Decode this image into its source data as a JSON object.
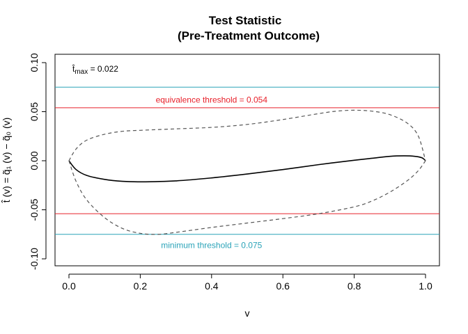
{
  "chart_data": {
    "type": "line",
    "title": "Test Statistic",
    "subtitle": "(Pre-Treatment Outcome)",
    "xlabel": "v",
    "ylabel": "t̂ (v) = q̃₁ (v) − q̃₀ (v)",
    "xlim": [
      0.0,
      1.0
    ],
    "ylim": [
      -0.1,
      0.1
    ],
    "x_ticks": [
      "0.0",
      "0.2",
      "0.4",
      "0.6",
      "0.8",
      "1.0"
    ],
    "y_ticks": [
      "-0.10",
      "-0.05",
      "0.00",
      "0.05",
      "0.10"
    ],
    "grid": false,
    "tmax_annotation": {
      "label": "t̂",
      "subscript": "max",
      "value_text": " = 0.022"
    },
    "series": [
      {
        "style": "solid",
        "color": "#000000",
        "x": [
          0.0,
          0.02,
          0.05,
          0.1,
          0.15,
          0.2,
          0.3,
          0.4,
          0.5,
          0.6,
          0.7,
          0.8,
          0.85,
          0.9,
          0.94,
          0.97,
          0.99,
          1.0
        ],
        "y": [
          0.0,
          -0.009,
          -0.015,
          -0.019,
          -0.021,
          -0.0215,
          -0.0205,
          -0.0175,
          -0.0135,
          -0.009,
          -0.004,
          0.0005,
          0.0025,
          0.0045,
          0.005,
          0.0045,
          0.003,
          0.0
        ]
      },
      {
        "style": "dashed",
        "color": "#555555",
        "x": [
          0.0,
          0.02,
          0.05,
          0.1,
          0.15,
          0.2,
          0.3,
          0.4,
          0.5,
          0.6,
          0.7,
          0.75,
          0.8,
          0.85,
          0.9,
          0.95,
          0.98,
          1.0
        ],
        "y": [
          0.0,
          0.012,
          0.021,
          0.027,
          0.03,
          0.031,
          0.0325,
          0.034,
          0.037,
          0.042,
          0.048,
          0.0505,
          0.0515,
          0.0505,
          0.047,
          0.038,
          0.025,
          0.0
        ]
      },
      {
        "style": "dashed",
        "color": "#555555",
        "x": [
          0.0,
          0.02,
          0.05,
          0.1,
          0.15,
          0.2,
          0.25,
          0.3,
          0.4,
          0.5,
          0.6,
          0.7,
          0.8,
          0.85,
          0.9,
          0.95,
          0.98,
          1.0
        ],
        "y": [
          0.0,
          -0.021,
          -0.04,
          -0.058,
          -0.069,
          -0.074,
          -0.075,
          -0.073,
          -0.068,
          -0.0635,
          -0.059,
          -0.054,
          -0.047,
          -0.041,
          -0.032,
          -0.02,
          -0.01,
          0.0
        ]
      }
    ],
    "hlines": [
      {
        "y": 0.054,
        "color": "#e8202a",
        "label": "equivalence threshold = 0.054",
        "label_x": 0.4,
        "label_y": 0.062
      },
      {
        "y": -0.054,
        "color": "#e8202a",
        "label": "",
        "label_x": 0.4,
        "label_y": -0.062
      },
      {
        "y": 0.075,
        "color": "#2aa3b8",
        "label": "",
        "label_x": 0.4,
        "label_y": 0.083
      },
      {
        "y": -0.075,
        "color": "#2aa3b8",
        "label": "minimum threshold = 0.075",
        "label_x": 0.4,
        "label_y": -0.086
      }
    ]
  }
}
